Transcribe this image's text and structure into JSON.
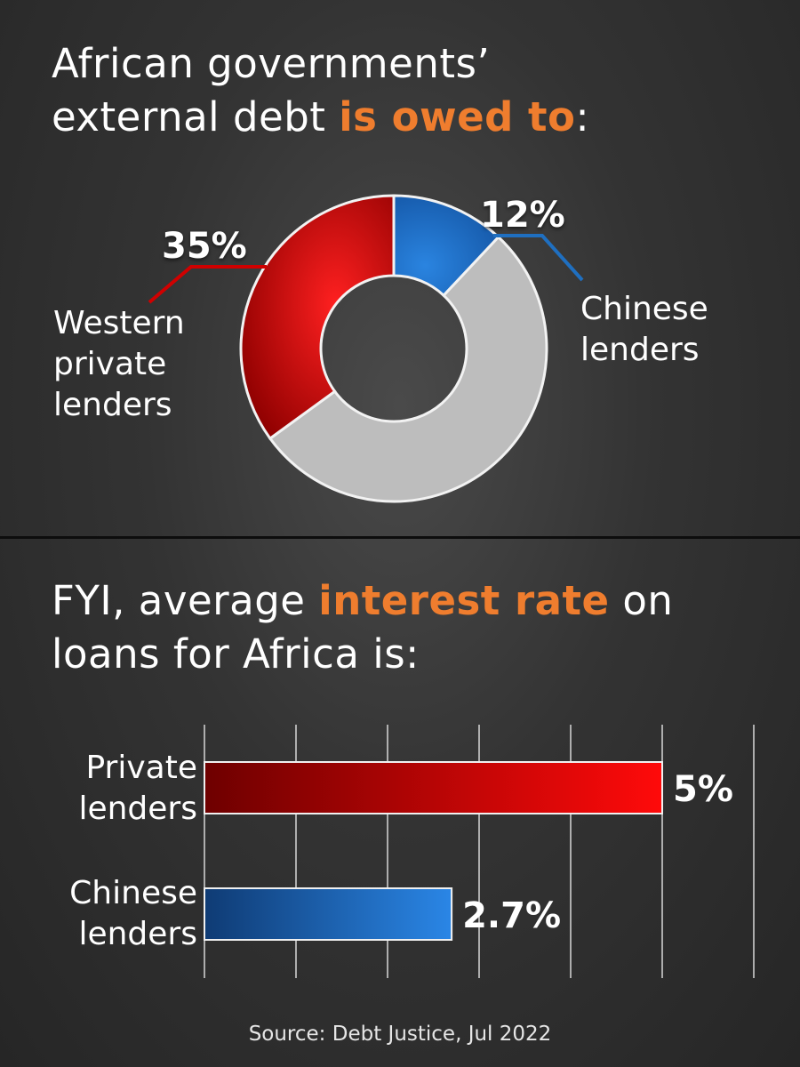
{
  "heading1": {
    "pre": "African governments’",
    "line2": "external debt ",
    "highlight": "is owed to",
    "post": ":"
  },
  "heading2": {
    "pre": "FYI, average ",
    "highlight": "interest rate",
    "post": " on",
    "line2": "loans for Africa is:"
  },
  "colors": {
    "accent": "#ef7d2e",
    "western": "#e00000",
    "chinese": "#1f6fc0",
    "other": "#bdbdbd"
  },
  "chart_data": [
    {
      "type": "pie",
      "title": "African governments’ external debt is owed to:",
      "slices": [
        {
          "label_lines": [
            "Chinese",
            "lenders"
          ],
          "value": 12,
          "value_label": "12%",
          "color": "#1f6fc0"
        },
        {
          "label_lines": [],
          "value": 53,
          "value_label": "",
          "color": "#bdbdbd"
        },
        {
          "label_lines": [
            "Western",
            "private",
            "lenders"
          ],
          "value": 35,
          "value_label": "35%",
          "color": "#e00000"
        }
      ]
    },
    {
      "type": "bar",
      "orientation": "horizontal",
      "title": "FYI, average interest rate on loans for Africa is:",
      "categories": [
        [
          "Private",
          "lenders"
        ],
        [
          "Chinese",
          "lenders"
        ]
      ],
      "values": [
        5,
        2.7
      ],
      "value_labels": [
        "5%",
        "2.7%"
      ],
      "colors": [
        "#e00000",
        "#1f6fc0"
      ],
      "xlim": [
        0,
        6
      ],
      "grid": true
    }
  ],
  "source": "Source: Debt Justice,  Jul 2022"
}
